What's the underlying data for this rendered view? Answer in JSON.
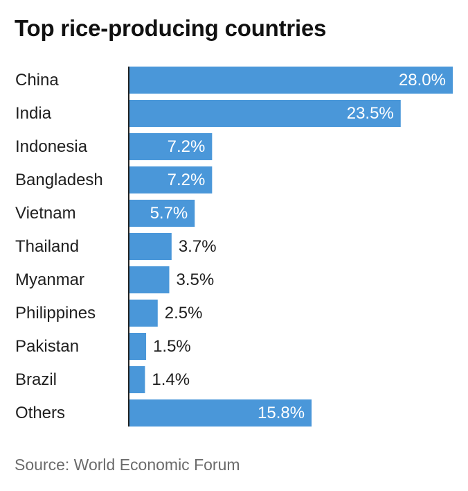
{
  "title": "Top rice-producing countries",
  "source": "Source: World Economic Forum",
  "colors": {
    "bar": "#4a97d9",
    "axis": "#222222",
    "label": "#1f1f1f",
    "value_inside": "#ffffff",
    "value_outside": "#1f1f1f"
  },
  "chart_data": {
    "type": "bar",
    "orientation": "horizontal",
    "categories": [
      "China",
      "India",
      "Indonesia",
      "Bangladesh",
      "Vietnam",
      "Thailand",
      "Myanmar",
      "Philippines",
      "Pakistan",
      "Brazil",
      "Others"
    ],
    "values": [
      28.0,
      23.5,
      7.2,
      7.2,
      5.7,
      3.7,
      3.5,
      2.5,
      1.5,
      1.4,
      15.8
    ],
    "value_labels": [
      "28.0%",
      "23.5%",
      "7.2%",
      "7.2%",
      "5.7%",
      "3.7%",
      "3.5%",
      "2.5%",
      "1.5%",
      "1.4%",
      "15.8%"
    ],
    "unit": "%",
    "xlim": [
      0,
      28.0
    ],
    "grid": false,
    "legend": "none"
  }
}
